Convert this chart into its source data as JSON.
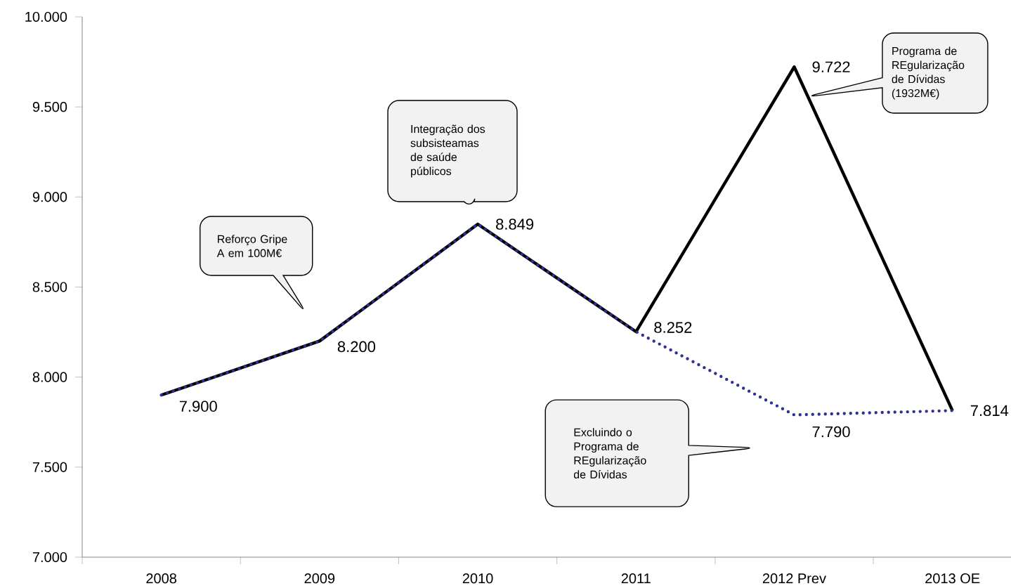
{
  "chart_data": {
    "type": "line",
    "categories": [
      "2008",
      "2009",
      "2010",
      "2011",
      "2012 Prev",
      "2013 OE"
    ],
    "series": [
      {
        "color": "#000000",
        "line_style": "solid",
        "values": [
          7900,
          8200,
          8849,
          8252,
          9722,
          7814
        ],
        "value_labels": [
          "7.900",
          "8.200",
          "8.849",
          "8.252",
          "9.722",
          "7.814"
        ]
      },
      {
        "color": "#2e3192",
        "line_style": "dotted",
        "values": [
          7900,
          8200,
          8849,
          8252,
          7790,
          7814
        ],
        "value_labels": [
          null,
          null,
          null,
          null,
          "7.790",
          null
        ]
      }
    ],
    "ylim": [
      7000,
      10000
    ],
    "yticks": [
      {
        "value": 7000,
        "label": "7.000"
      },
      {
        "value": 7500,
        "label": "7.500"
      },
      {
        "value": 8000,
        "label": "8.000"
      },
      {
        "value": 8500,
        "label": "8.500"
      },
      {
        "value": 9000,
        "label": "9.000"
      },
      {
        "value": 9500,
        "label": "9.500"
      },
      {
        "value": 10000,
        "label": "10.000"
      }
    ],
    "grid": false,
    "annotations": [
      "Reforço Gripe A em 100M€",
      "Integração dos subsisteamas de saúde públicos",
      "Programa de REgularização de Dívidas (1932M€)",
      "Excluindo o Programa de REgularização de Dívidas"
    ]
  }
}
